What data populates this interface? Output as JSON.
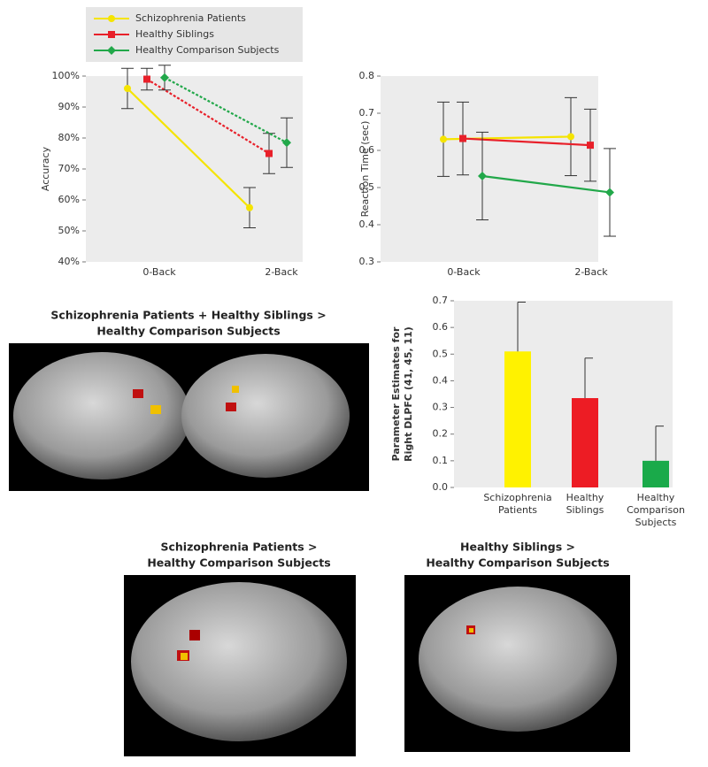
{
  "chart_data": [
    {
      "type": "line",
      "ylabel": "Accuracy",
      "categories": [
        "0-Back",
        "2-Back"
      ],
      "ylim": [
        40,
        100
      ],
      "yticks": [
        {
          "value": 40,
          "label": "40%"
        },
        {
          "value": 50,
          "label": "50%"
        },
        {
          "value": 60,
          "label": "60%"
        },
        {
          "value": 70,
          "label": "70%"
        },
        {
          "value": 80,
          "label": "80%"
        },
        {
          "value": 90,
          "label": "90%"
        },
        {
          "value": 100,
          "label": "100%"
        }
      ],
      "legend": "top",
      "series": [
        {
          "name": "Schizophrenia Patients",
          "color": "#f5e400",
          "marker": "circle",
          "line_style": "solid",
          "values": [
            96,
            57.5
          ],
          "errors": [
            6.5,
            6.5
          ]
        },
        {
          "name": "Healthy Siblings",
          "color": "#e8202a",
          "marker": "square",
          "line_style": "dotted",
          "values": [
            99,
            75
          ],
          "errors": [
            3.5,
            6.5
          ]
        },
        {
          "name": "Healthy Comparison Subjects",
          "color": "#22a84a",
          "marker": "diamond",
          "line_style": "dotted",
          "values": [
            99.5,
            78.5
          ],
          "errors": [
            4,
            8
          ]
        }
      ]
    },
    {
      "type": "line",
      "ylabel": "Reaction Time (sec)",
      "categories": [
        "0-Back",
        "2-Back"
      ],
      "ylim": [
        0.3,
        0.8
      ],
      "yticks": [
        0.3,
        0.4,
        0.5,
        0.6,
        0.7,
        0.8
      ],
      "series": [
        {
          "color": "#f5e400",
          "marker": "circle",
          "line_style": "solid",
          "values": [
            0.63,
            0.637
          ],
          "errors": [
            0.1,
            0.105
          ]
        },
        {
          "color": "#e8202a",
          "marker": "square",
          "line_style": "solid",
          "values": [
            0.632,
            0.614
          ],
          "errors": [
            0.098,
            0.097
          ]
        },
        {
          "color": "#22a84a",
          "marker": "diamond",
          "line_style": "solid",
          "values": [
            0.531,
            0.487
          ],
          "errors": [
            0.118,
            0.118
          ]
        }
      ]
    },
    {
      "type": "bar",
      "ylabel": [
        "Parameter Estimates for",
        "Right DLPFC (41, 45, 11)"
      ],
      "categories": [
        [
          "Schizophrenia",
          "Patients"
        ],
        [
          "Healthy",
          "Siblings"
        ],
        [
          "Healthy",
          "Comparison",
          "Subjects"
        ]
      ],
      "values": [
        0.51,
        0.335,
        0.1
      ],
      "errors": [
        0.185,
        0.15,
        0.13
      ],
      "colors": [
        "#fff200",
        "#ed1c24",
        "#1aaa4a"
      ],
      "ylim": [
        0,
        0.7
      ],
      "yticks": [
        {
          "value": 0,
          "label": "0.0"
        },
        0.1,
        0.2,
        0.3,
        0.4,
        0.5,
        0.6,
        0.7
      ]
    }
  ],
  "images": [
    {
      "title": [
        "Schizophrenia Patients + Healthy Siblings >",
        "Healthy Comparison Subjects"
      ]
    },
    {
      "title": [
        "Schizophrenia Patients >",
        "Healthy Comparison Subjects"
      ]
    },
    {
      "title": [
        "Healthy Siblings >",
        "Healthy Comparison Subjects"
      ]
    }
  ]
}
